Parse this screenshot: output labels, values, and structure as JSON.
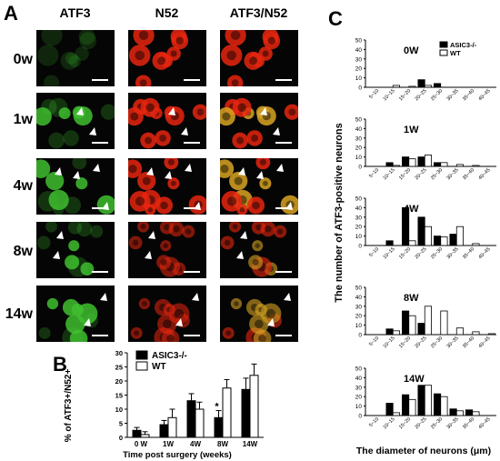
{
  "panels": {
    "a": "A",
    "b": "B",
    "c": "C"
  },
  "micrographs": {
    "columns": [
      "ATF3",
      "N52",
      "ATF3/N52"
    ],
    "rows": [
      "0w",
      "1w",
      "4w",
      "8w",
      "14w"
    ],
    "colors": {
      "green": "#3fbf2f",
      "red": "#e8260f",
      "merge": "#d9a423"
    }
  },
  "chart_data": [
    {
      "type": "bar",
      "panel": "B",
      "categories": [
        "0 W",
        "1W",
        "4W",
        "8W",
        "14W"
      ],
      "series": [
        {
          "name": "ASIC3-/-",
          "values": [
            2.5,
            4.5,
            13,
            7,
            17
          ],
          "errors": [
            1,
            1.5,
            2.5,
            2.5,
            4
          ],
          "color": "#000000"
        },
        {
          "name": "WT",
          "values": [
            1,
            7,
            10,
            17.5,
            22
          ],
          "errors": [
            1,
            3,
            2.5,
            3,
            4
          ],
          "color": "#ffffff"
        }
      ],
      "xlabel": "Time post surgery  (weeks)",
      "ylabel": "% of ATF3+/N52+",
      "ylim": [
        0,
        30
      ],
      "yticks": [
        0,
        5,
        10,
        15,
        20,
        25,
        30
      ],
      "annotation": "*",
      "legend": "top-left",
      "grid": false
    },
    {
      "type": "bar",
      "panel": "C",
      "title": "0W",
      "categories": [
        "5~10",
        "10~15",
        "15~20",
        "20~25",
        "25~30",
        "30~35",
        "35~40",
        "40~45"
      ],
      "series": [
        {
          "name": "ASIC3-/-",
          "values": [
            0,
            0,
            0,
            8,
            4,
            0,
            0,
            0
          ]
        },
        {
          "name": "WT",
          "values": [
            0,
            2,
            1,
            2,
            0,
            0,
            0,
            0
          ]
        }
      ],
      "ylim": [
        0,
        50
      ],
      "yticks": [
        0,
        10,
        20,
        30,
        40,
        50
      ],
      "legend": "top-right"
    },
    {
      "type": "bar",
      "panel": "C",
      "title": "1W",
      "categories": [
        "5~10",
        "10~15",
        "15~20",
        "20~25",
        "25~30",
        "30~35",
        "35~40",
        "40~45"
      ],
      "series": [
        {
          "name": "ASIC3-/-",
          "values": [
            0,
            4,
            10,
            10,
            4,
            0,
            0,
            0
          ]
        },
        {
          "name": "WT",
          "values": [
            0,
            1,
            8,
            12,
            4,
            2,
            1,
            0
          ]
        }
      ],
      "ylim": [
        0,
        50
      ],
      "yticks": [
        0,
        10,
        20,
        30,
        40,
        50
      ]
    },
    {
      "type": "bar",
      "panel": "C",
      "title": "4W",
      "categories": [
        "5~10",
        "10~15",
        "15~20",
        "20~25",
        "25~30",
        "30~35",
        "35~40",
        "40~45"
      ],
      "series": [
        {
          "name": "ASIC3-/-",
          "values": [
            0,
            5,
            40,
            30,
            10,
            12,
            0,
            0
          ]
        },
        {
          "name": "WT",
          "values": [
            0,
            0,
            5,
            20,
            9,
            20,
            2,
            0
          ]
        }
      ],
      "ylim": [
        0,
        50
      ],
      "yticks": [
        0,
        10,
        20,
        30,
        40,
        50
      ]
    },
    {
      "type": "bar",
      "panel": "C",
      "title": "8W",
      "categories": [
        "5~10",
        "10~15",
        "15~20",
        "20~25",
        "25~30",
        "30~35",
        "35~40",
        "40~45"
      ],
      "series": [
        {
          "name": "ASIC3-/-",
          "values": [
            0,
            6,
            25,
            12,
            0,
            0,
            0,
            0
          ]
        },
        {
          "name": "WT",
          "values": [
            0,
            4,
            20,
            30,
            25,
            7,
            3,
            1
          ]
        }
      ],
      "ylim": [
        0,
        50
      ],
      "yticks": [
        0,
        10,
        20,
        30,
        40,
        50
      ]
    },
    {
      "type": "bar",
      "panel": "C",
      "title": "14W",
      "categories": [
        "5~10",
        "10~15",
        "15~20",
        "20~25",
        "25~30",
        "30~35",
        "35~40",
        "40~45"
      ],
      "series": [
        {
          "name": "ASIC3-/-",
          "values": [
            0,
            13,
            22,
            32,
            23,
            7,
            6,
            0
          ]
        },
        {
          "name": "WT",
          "values": [
            0,
            3,
            17,
            32,
            20,
            5,
            4,
            0
          ]
        }
      ],
      "ylim": [
        0,
        50
      ],
      "yticks": [
        0,
        10,
        20,
        30,
        40,
        50
      ]
    }
  ],
  "c_ylabel": "The number of ATF3-positive neurons",
  "c_xlabel": "The diameter of neurons (μm)"
}
